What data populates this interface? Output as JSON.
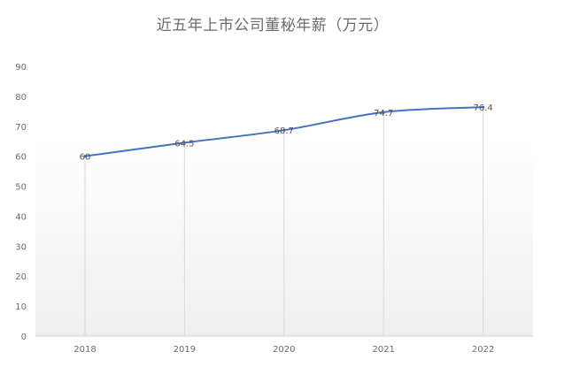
{
  "chart_data": {
    "type": "line",
    "title": "近五年上市公司董秘年薪（万元）",
    "categories": [
      "2018",
      "2019",
      "2020",
      "2021",
      "2022"
    ],
    "series": [
      {
        "values": [
          60,
          64.5,
          68.7,
          74.7,
          76.4
        ],
        "color": "#4472c4"
      }
    ],
    "data_labels": [
      "60",
      "64.5",
      "68.7",
      "74.7",
      "76.4"
    ],
    "yticks": [
      0,
      10,
      20,
      30,
      40,
      50,
      60,
      70,
      80,
      90
    ],
    "ylim": [
      0,
      90
    ],
    "xlabel": "",
    "ylabel": "",
    "grid": "vertical drop lines",
    "legend": "none"
  }
}
